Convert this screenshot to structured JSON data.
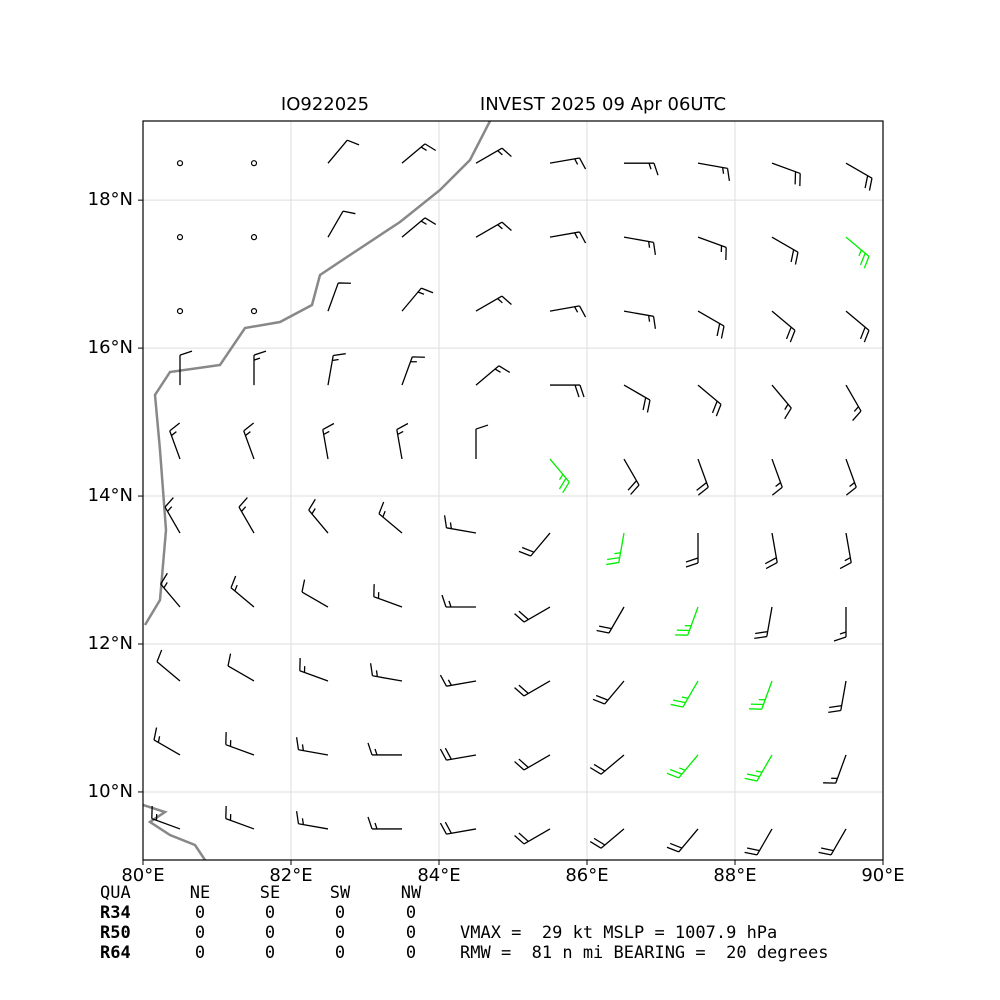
{
  "chart_data": {
    "type": "barbs",
    "title_left": "IO922025",
    "title_right": "INVEST 2025 09 Apr 06UTC",
    "xlim": [
      80,
      90
    ],
    "ylim": [
      9.08,
      19.07
    ],
    "xticks": [
      {
        "value": 80,
        "label": "80°E"
      },
      {
        "value": 82,
        "label": "82°E"
      },
      {
        "value": 84,
        "label": "84°E"
      },
      {
        "value": 86,
        "label": "86°E"
      },
      {
        "value": 88,
        "label": "88°E"
      },
      {
        "value": 90,
        "label": "90°E"
      }
    ],
    "yticks": [
      {
        "value": 10,
        "label": "10°N"
      },
      {
        "value": 12,
        "label": "12°N"
      },
      {
        "value": 14,
        "label": "14°N"
      },
      {
        "value": 16,
        "label": "16°N"
      },
      {
        "value": 18,
        "label": "18°N"
      }
    ],
    "grid": true,
    "color": "#000000",
    "highlight_color": "#00ee00",
    "highlight_min_speed": 25,
    "lons": [
      80.5,
      81.5,
      82.5,
      83.5,
      84.5,
      85.5,
      86.5,
      87.5,
      88.5,
      89.5
    ],
    "lats": [
      18.5,
      17.5,
      16.5,
      15.5,
      14.5,
      13.5,
      12.5,
      11.5,
      10.5,
      9.5
    ],
    "speed": [
      [
        0,
        0,
        10,
        15,
        15,
        15,
        15,
        15,
        20,
        20
      ],
      [
        0,
        0,
        10,
        15,
        15,
        15,
        15,
        15,
        20,
        25
      ],
      [
        0,
        0,
        10,
        15,
        15,
        15,
        15,
        20,
        20,
        20
      ],
      [
        10,
        15,
        15,
        15,
        15,
        20,
        20,
        20,
        15,
        15
      ],
      [
        15,
        15,
        15,
        15,
        10,
        25,
        20,
        20,
        15,
        15
      ],
      [
        15,
        15,
        15,
        15,
        15,
        20,
        25,
        20,
        20,
        15
      ],
      [
        15,
        15,
        10,
        15,
        15,
        20,
        20,
        25,
        20,
        15
      ],
      [
        10,
        10,
        15,
        15,
        15,
        20,
        20,
        25,
        25,
        20
      ],
      [
        15,
        15,
        15,
        15,
        20,
        20,
        20,
        25,
        25,
        15
      ],
      [
        15,
        15,
        15,
        15,
        20,
        20,
        20,
        20,
        20,
        20
      ]
    ],
    "direction": [
      [
        20,
        30,
        40,
        50,
        60,
        80,
        90,
        100,
        110,
        120
      ],
      [
        20,
        20,
        30,
        50,
        60,
        80,
        100,
        110,
        120,
        130
      ],
      [
        10,
        10,
        20,
        40,
        60,
        80,
        100,
        120,
        130,
        130
      ],
      [
        360,
        360,
        10,
        20,
        50,
        90,
        120,
        130,
        140,
        150
      ],
      [
        340,
        340,
        350,
        350,
        360,
        140,
        150,
        160,
        160,
        160
      ],
      [
        330,
        330,
        320,
        310,
        280,
        220,
        190,
        180,
        170,
        170
      ],
      [
        320,
        310,
        300,
        290,
        270,
        240,
        210,
        200,
        190,
        180
      ],
      [
        310,
        300,
        290,
        280,
        260,
        240,
        220,
        210,
        200,
        190
      ],
      [
        300,
        290,
        280,
        270,
        260,
        240,
        230,
        220,
        210,
        200
      ],
      [
        290,
        290,
        280,
        270,
        260,
        240,
        230,
        220,
        210,
        210
      ]
    ]
  },
  "table": {
    "header": [
      "QUA",
      "NE",
      "SE",
      "SW",
      "NW"
    ],
    "rows": [
      [
        "R34",
        0,
        0,
        0,
        0
      ],
      [
        "R50",
        0,
        0,
        0,
        0
      ],
      [
        "R64",
        0,
        0,
        0,
        0
      ]
    ]
  },
  "info_lines": [
    "VMAX =  29 kt MSLP = 1007.9 hPa",
    "RMW =  81 n mi BEARING =  20 degrees"
  ]
}
